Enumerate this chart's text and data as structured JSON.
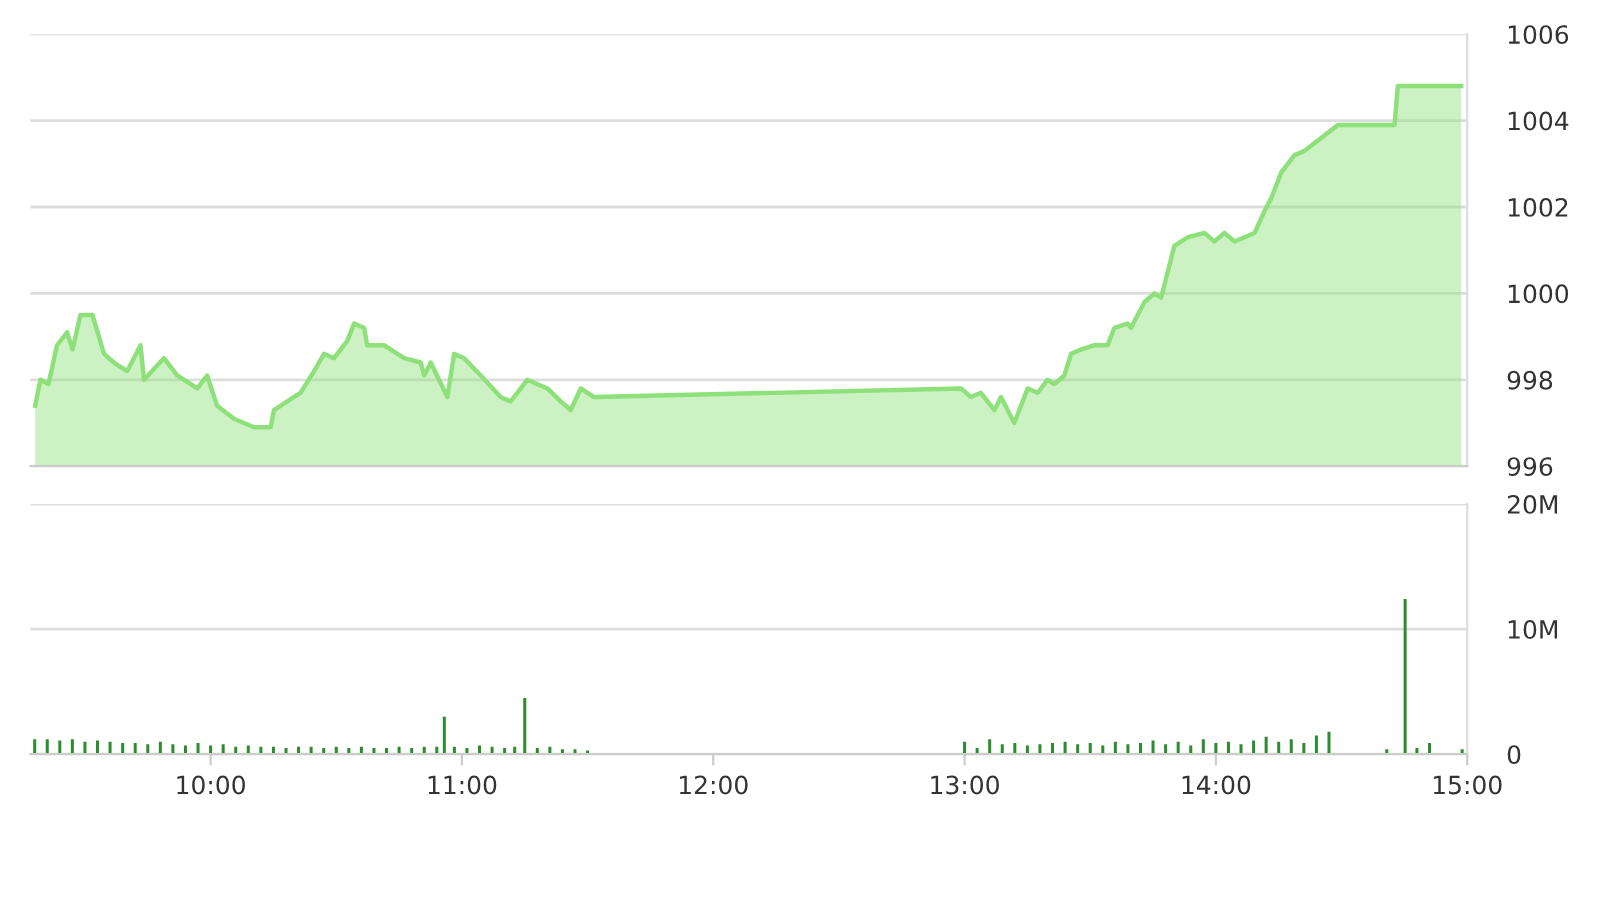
{
  "chart_data": [
    {
      "type": "area",
      "color": "#8ee07a",
      "xlim": [
        9.283,
        15.0
      ],
      "ylim": [
        996,
        1006
      ],
      "yticks": [
        996,
        998,
        1000,
        1002,
        1004,
        1006
      ],
      "grid": "y",
      "tick_labels": "y",
      "x": [
        9.302,
        9.323,
        9.355,
        9.389,
        9.429,
        9.451,
        9.482,
        9.509,
        9.53,
        9.576,
        9.615,
        9.668,
        9.721,
        9.735,
        9.814,
        9.867,
        9.947,
        9.986,
        10.026,
        10.093,
        10.173,
        10.239,
        10.252,
        10.305,
        10.358,
        10.412,
        10.451,
        10.491,
        10.544,
        10.571,
        10.611,
        10.623,
        10.69,
        10.77,
        10.836,
        10.85,
        10.876,
        10.942,
        10.969,
        11.009,
        11.075,
        11.154,
        11.194,
        11.26,
        11.34,
        11.393,
        11.433,
        11.473,
        11.526,
        12.986,
        13.025,
        13.065,
        13.119,
        13.145,
        13.198,
        13.251,
        13.291,
        13.33,
        13.357,
        13.397,
        13.424,
        13.463,
        13.517,
        13.569,
        13.596,
        13.649,
        13.662,
        13.716,
        13.756,
        13.782,
        13.835,
        13.888,
        13.955,
        13.994,
        14.034,
        14.074,
        14.114,
        14.154,
        14.193,
        14.22,
        14.26,
        14.313,
        14.353,
        14.419,
        14.485,
        14.711,
        14.724,
        14.976
      ],
      "values": [
        997.4,
        998.0,
        997.9,
        998.8,
        999.1,
        998.7,
        999.5,
        999.5,
        999.5,
        998.6,
        998.4,
        998.2,
        998.8,
        998.0,
        998.5,
        998.1,
        997.8,
        998.1,
        997.4,
        997.1,
        996.9,
        996.9,
        997.3,
        997.5,
        997.7,
        998.2,
        998.6,
        998.5,
        998.9,
        999.3,
        999.2,
        998.8,
        998.8,
        998.5,
        998.4,
        998.1,
        998.4,
        997.6,
        998.6,
        998.5,
        998.1,
        997.6,
        997.5,
        998.0,
        997.8,
        997.5,
        997.3,
        997.8,
        997.6,
        997.8,
        997.6,
        997.7,
        997.3,
        997.6,
        997.0,
        997.8,
        997.7,
        998.0,
        997.9,
        998.1,
        998.6,
        998.7,
        998.8,
        998.8,
        999.2,
        999.3,
        999.2,
        999.8,
        1000.0,
        999.9,
        1001.1,
        1001.3,
        1001.4,
        1001.2,
        1001.4,
        1001.2,
        1001.3,
        1001.4,
        1001.9,
        1002.2,
        1002.8,
        1003.2,
        1003.3,
        1003.6,
        1003.9,
        1003.9,
        1004.8,
        1004.8
      ]
    },
    {
      "type": "bar",
      "color": "#2e8b2e",
      "xlim": [
        9.283,
        15.0
      ],
      "ylim": [
        0,
        20
      ],
      "yticks": [
        0,
        {
          "value": 10,
          "label": "10M"
        },
        {
          "value": 20,
          "label": "20M"
        }
      ],
      "grid": "y",
      "xticks": [
        {
          "value": 10,
          "label": "10:00"
        },
        {
          "value": 11,
          "label": "11:00"
        },
        {
          "value": 12,
          "label": "12:00"
        },
        {
          "value": 13,
          "label": "13:00"
        },
        {
          "value": 14,
          "label": "14:00"
        },
        {
          "value": 15,
          "label": "15:00"
        }
      ],
      "x": [
        9.3,
        9.35,
        9.4,
        9.45,
        9.5,
        9.55,
        9.6,
        9.65,
        9.7,
        9.75,
        9.8,
        9.85,
        9.9,
        9.95,
        10.0,
        10.05,
        10.1,
        10.15,
        10.2,
        10.25,
        10.3,
        10.35,
        10.4,
        10.45,
        10.5,
        10.55,
        10.6,
        10.65,
        10.7,
        10.75,
        10.8,
        10.85,
        10.9,
        10.93,
        10.97,
        11.02,
        11.07,
        11.12,
        11.17,
        11.21,
        11.25,
        11.3,
        11.35,
        11.4,
        11.45,
        11.5,
        13.0,
        13.05,
        13.1,
        13.15,
        13.2,
        13.25,
        13.3,
        13.35,
        13.4,
        13.45,
        13.5,
        13.55,
        13.6,
        13.65,
        13.7,
        13.75,
        13.8,
        13.85,
        13.9,
        13.95,
        14.0,
        14.05,
        14.1,
        14.15,
        14.2,
        14.25,
        14.3,
        14.35,
        14.4,
        14.45,
        14.68,
        14.753,
        14.8,
        14.85,
        14.98
      ],
      "values": [
        1.2,
        1.2,
        1.1,
        1.2,
        1.0,
        1.1,
        1.0,
        0.9,
        0.9,
        0.8,
        1.0,
        0.8,
        0.7,
        0.9,
        0.7,
        0.8,
        0.6,
        0.7,
        0.6,
        0.6,
        0.5,
        0.6,
        0.6,
        0.5,
        0.6,
        0.5,
        0.6,
        0.5,
        0.5,
        0.6,
        0.5,
        0.6,
        0.6,
        3.0,
        0.6,
        0.5,
        0.7,
        0.6,
        0.5,
        0.6,
        4.5,
        0.5,
        0.6,
        0.4,
        0.4,
        0.3,
        1.0,
        0.5,
        1.2,
        0.8,
        0.9,
        0.7,
        0.8,
        0.9,
        1.0,
        0.8,
        0.9,
        0.7,
        1.0,
        0.8,
        0.9,
        1.1,
        0.8,
        1.0,
        0.7,
        1.2,
        0.9,
        1.0,
        0.8,
        1.1,
        1.4,
        1.0,
        1.2,
        0.9,
        1.5,
        1.8,
        0.4,
        12.4,
        0.5,
        0.9,
        0.4
      ]
    }
  ]
}
